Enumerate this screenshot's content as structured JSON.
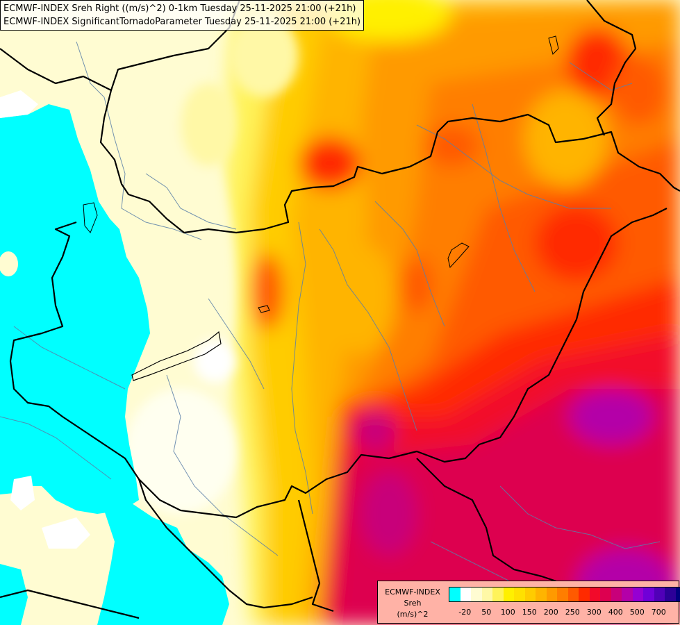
{
  "header": {
    "line1": "ECMWF-INDEX Sreh Right ((m/s)^2) 0-1km Tuesday 25-11-2025 21:00 (+21h)",
    "line2": "ECMWF-INDEX SignificantTornadoParameter Tuesday 25-11-2025 21:00 (+21h)"
  },
  "legend": {
    "source": "ECMWF-INDEX",
    "parameter": "Sreh",
    "unit": "(m/s)^2",
    "colors": [
      "#00ffff",
      "#ffffff",
      "#fffcd2",
      "#fff8a6",
      "#fff35a",
      "#fff000",
      "#ffe100",
      "#ffcc00",
      "#ffb400",
      "#ff9a00",
      "#ff7e00",
      "#ff5a00",
      "#ff2a00",
      "#f20a2a",
      "#dd0050",
      "#c8007a",
      "#b400a8",
      "#9600d2",
      "#7000d8",
      "#5000b8",
      "#2c0098",
      "#000080"
    ],
    "ticks": [
      {
        "label": "-20",
        "index": 1
      },
      {
        "label": "50",
        "index": 3
      },
      {
        "label": "100",
        "index": 5
      },
      {
        "label": "150",
        "index": 7
      },
      {
        "label": "200",
        "index": 9
      },
      {
        "label": "250",
        "index": 11
      },
      {
        "label": "300",
        "index": 13
      },
      {
        "label": "400",
        "index": 15
      },
      {
        "label": "500",
        "index": 17
      },
      {
        "label": "700",
        "index": 19
      }
    ]
  }
}
